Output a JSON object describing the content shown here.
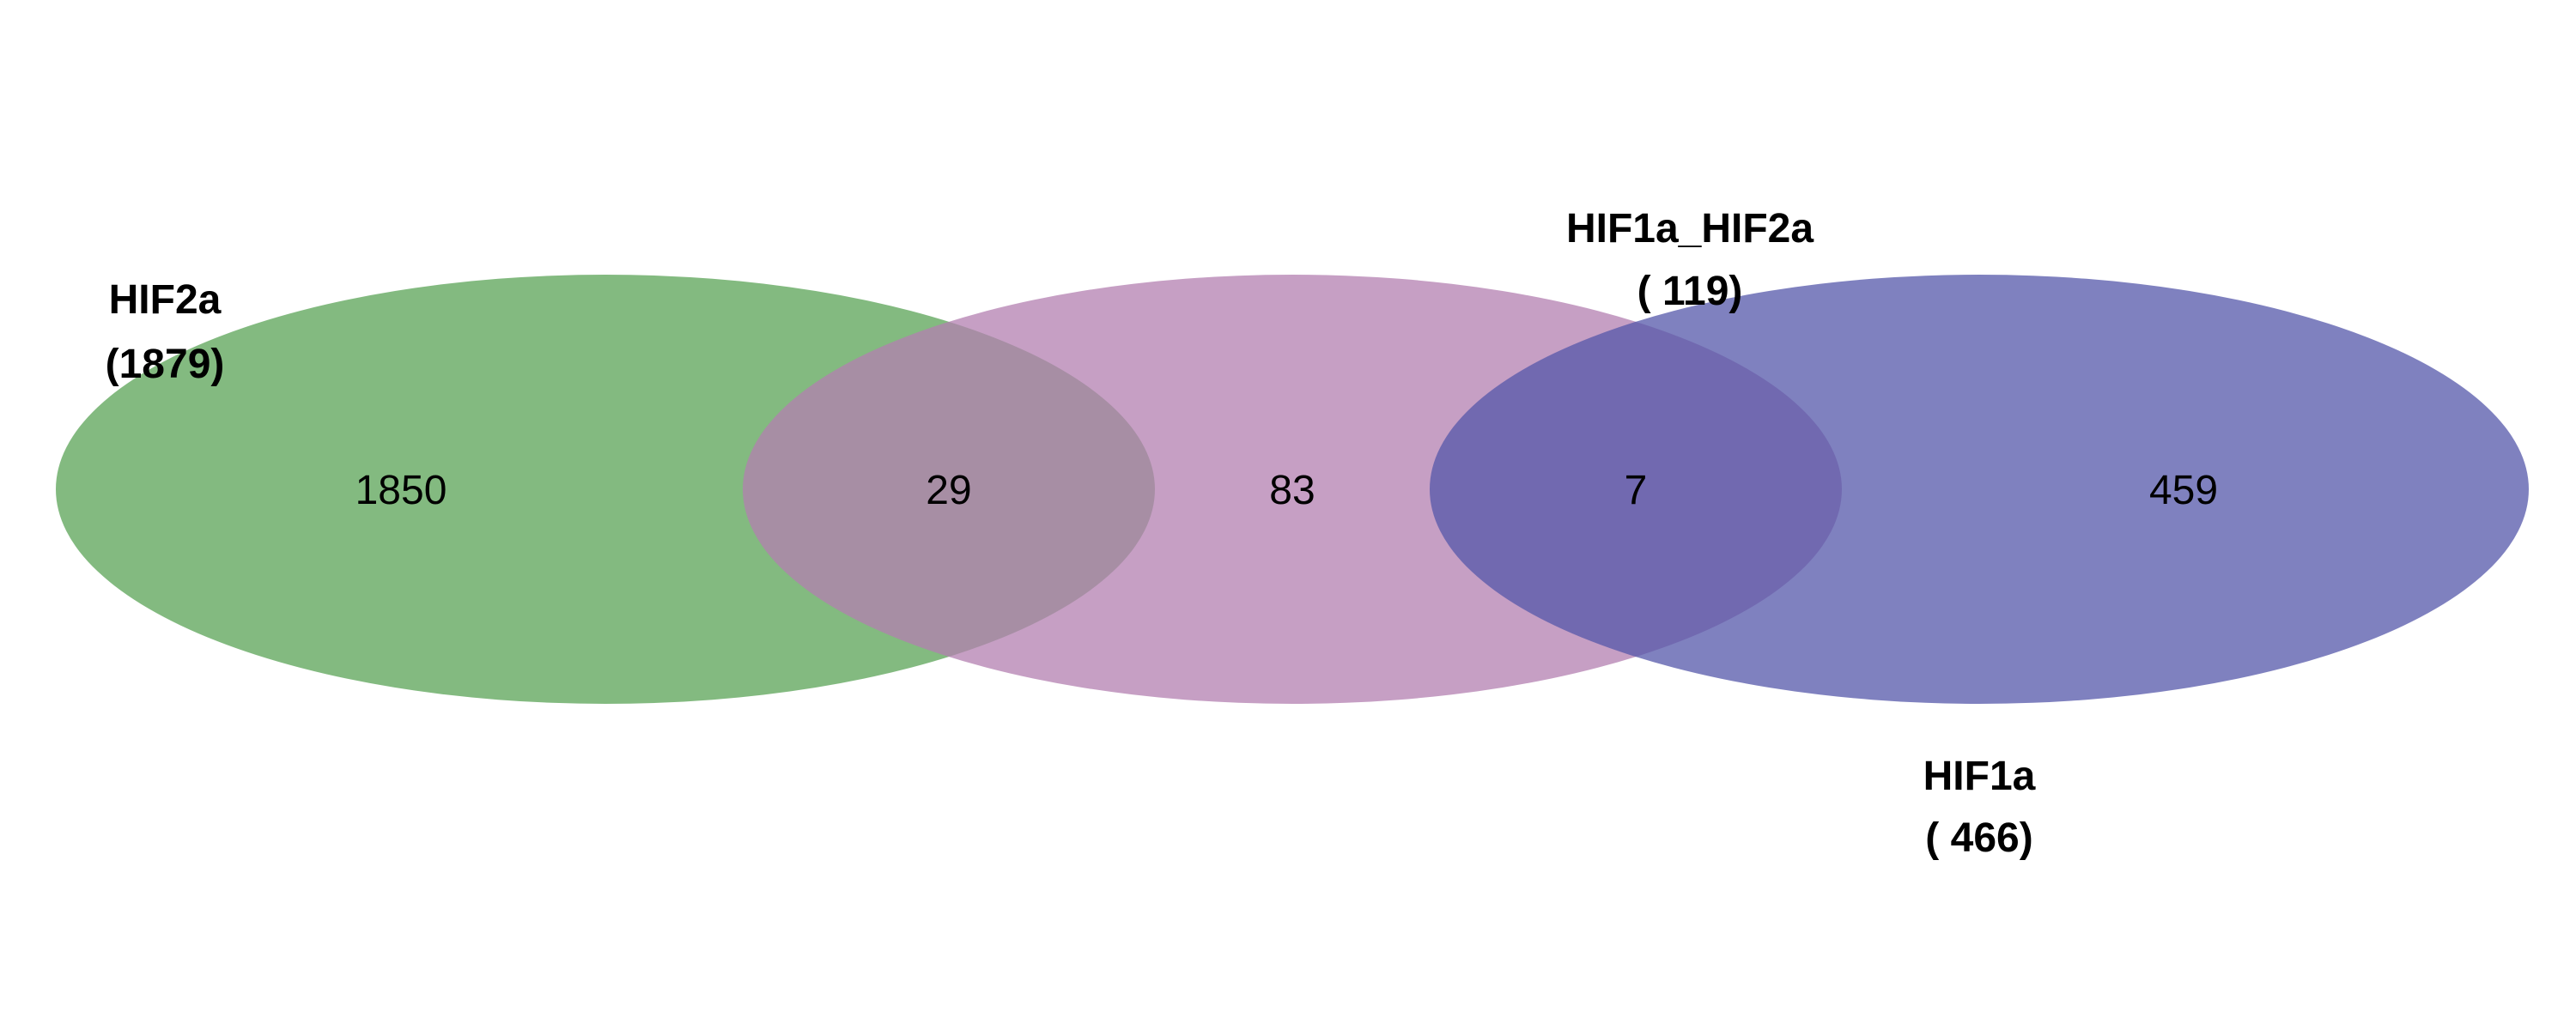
{
  "sets": [
    {
      "id": "hif2a",
      "name": "HIF2a",
      "total": "(1879)",
      "color": "#5aa355"
    },
    {
      "id": "hif1a_hif2a",
      "name": "HIF1a_HIF2a",
      "total": "( 119)",
      "color": "#b37fb0"
    },
    {
      "id": "hif1a",
      "name": "HIF1a",
      "total": "( 466)",
      "color": "#5457aa"
    }
  ],
  "regions": {
    "hif2a_only": "1850",
    "hif2a_and_hif1a_hif2a": "29",
    "hif1a_hif2a_only": "83",
    "hif1a_hif2a_and_hif1a": "7",
    "hif1a_only": "459"
  }
}
